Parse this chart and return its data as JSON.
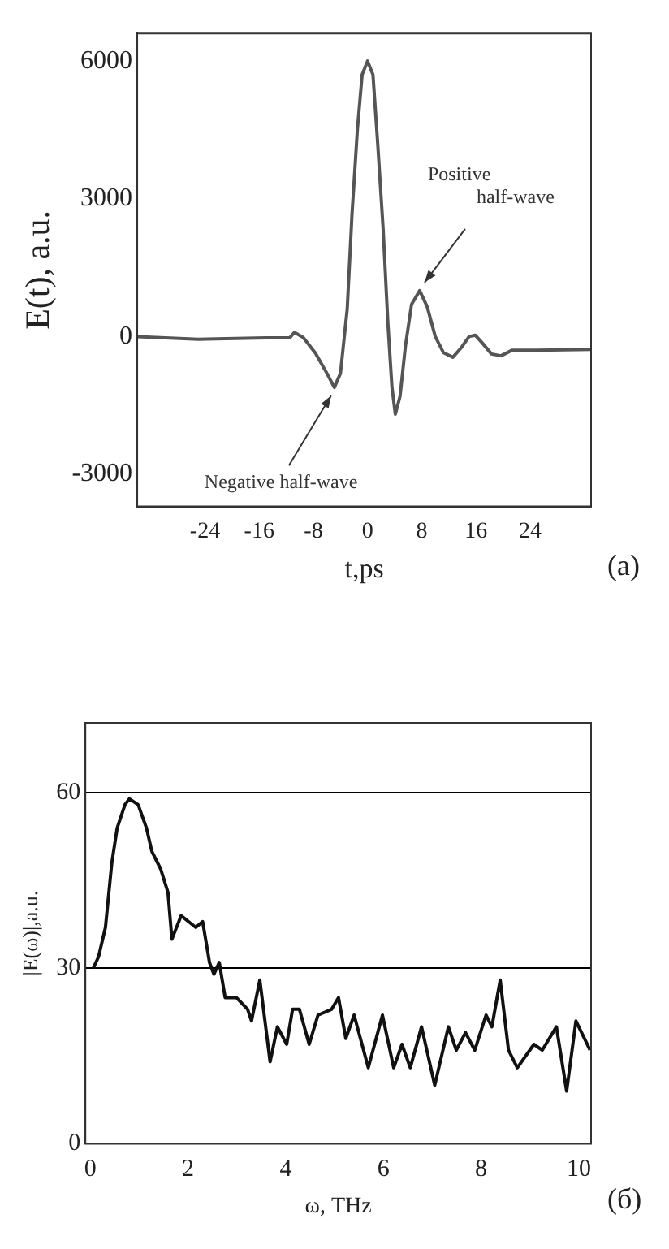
{
  "chart_data": [
    {
      "type": "line",
      "xlabel": "t,ps",
      "ylabel": "E(t), a.u.",
      "xlim": [
        -34,
        33
      ],
      "ylim": [
        -3700,
        6600
      ],
      "xticks": [
        -24,
        -16,
        -8,
        0,
        8,
        16,
        24
      ],
      "yticks": [
        -3000,
        0,
        3000,
        6000
      ],
      "grid": false,
      "legend": false,
      "marker": "none",
      "line_style": "solid",
      "series": [
        {
          "color": "#555555",
          "x": [
            -34,
            -25,
            -15,
            -11.5,
            -10.8,
            -9.5,
            -7.7,
            -6,
            -4.9,
            -4,
            -3,
            -2.3,
            -1.5,
            -0.8,
            0,
            0.8,
            1.5,
            2.3,
            3,
            3.6,
            4.1,
            4.8,
            5.6,
            6.5,
            7.7,
            8.8,
            10,
            11.2,
            12.6,
            13.8,
            15,
            15.9,
            17,
            18.3,
            19.7,
            21.3,
            25,
            33
          ],
          "values": [
            0,
            -60,
            -30,
            -30,
            90,
            -20,
            -360,
            -800,
            -1110,
            -800,
            600,
            2650,
            4500,
            5700,
            6000,
            5700,
            4200,
            2350,
            300,
            -1100,
            -1690,
            -1300,
            -200,
            700,
            1000,
            650,
            0,
            -350,
            -450,
            -250,
            0,
            30,
            -150,
            -380,
            -420,
            -300,
            -300,
            -280
          ]
        }
      ],
      "annotations": [
        {
          "text": "Positive half-wave",
          "x": 7.7,
          "y": 1000
        },
        {
          "text": "Negative half-wave",
          "x": -4.9,
          "y": -1110
        },
        "(a)"
      ]
    },
    {
      "type": "line",
      "xlabel": "ω, THz",
      "ylabel": "|E(ω)|,a.u.",
      "xlim": [
        -0.1,
        10.25
      ],
      "ylim": [
        0,
        72
      ],
      "xticks": [
        0,
        2,
        4,
        6,
        8,
        10
      ],
      "yticks": [
        0,
        30,
        60
      ],
      "grid": "y",
      "legend": false,
      "marker": "none",
      "line_style": "solid",
      "series": [
        {
          "color": "#111111",
          "x": [
            0.06,
            0.17,
            0.31,
            0.44,
            0.55,
            0.71,
            0.8,
            0.98,
            1.15,
            1.26,
            1.44,
            1.59,
            1.67,
            1.86,
            2.01,
            2.16,
            2.3,
            2.44,
            2.53,
            2.64,
            2.76,
            2.99,
            3.22,
            3.3,
            3.47,
            3.68,
            3.83,
            4.02,
            4.14,
            4.28,
            4.48,
            4.66,
            4.94,
            5.08,
            5.23,
            5.4,
            5.69,
            5.98,
            6.21,
            6.38,
            6.55,
            6.78,
            7.05,
            7.33,
            7.49,
            7.68,
            7.87,
            8.1,
            8.22,
            8.39,
            8.56,
            8.74,
            9.08,
            9.25,
            9.54,
            9.75,
            9.94,
            10.23
          ],
          "values": [
            30,
            32,
            37,
            48,
            54,
            58,
            59,
            58,
            54,
            50,
            47,
            43,
            35,
            39,
            38,
            37,
            38,
            31,
            29,
            31,
            25,
            25,
            23,
            21,
            28,
            14,
            20,
            17,
            23,
            23,
            17,
            22,
            23,
            25,
            18,
            22,
            13,
            22,
            13,
            17,
            13,
            20,
            10,
            20,
            16,
            19,
            16,
            22,
            20,
            28,
            16,
            13,
            17,
            16,
            20,
            9,
            21,
            16
          ]
        }
      ],
      "annotations": [
        "(б)"
      ]
    }
  ]
}
